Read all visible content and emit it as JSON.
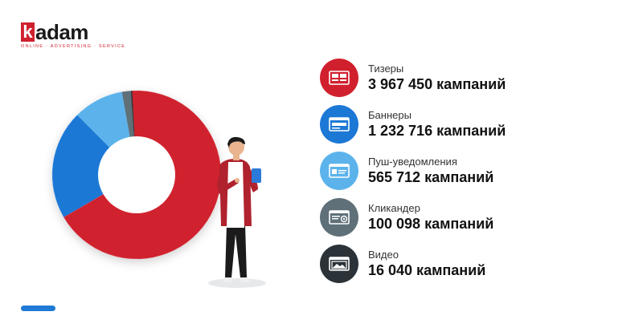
{
  "brand": {
    "logo_k": "k",
    "logo_rest": "adam",
    "tagline": "ONLINE · ADVERTISING · SERVICE",
    "accent": "#d0202e"
  },
  "chart_data": {
    "type": "pie",
    "categories": [
      "Тизеры",
      "Баннеры",
      "Пуш-уведомления",
      "Кликандер",
      "Видео"
    ],
    "values": [
      3967450,
      1232716,
      565712,
      100098,
      16040
    ],
    "unit": "кампаний",
    "colors": [
      "#d0202e",
      "#1c78d5",
      "#5cb3ec",
      "#5f7079",
      "#2c3338"
    ]
  },
  "legend": [
    {
      "label": "Тизеры",
      "count": "3 967 450 кампаний",
      "color": "#d0202e",
      "icon": "teaser-icon"
    },
    {
      "label": "Баннеры",
      "count": "1 232 716 кампаний",
      "color": "#1c78d5",
      "icon": "banner-icon"
    },
    {
      "label": "Пуш-уведомления",
      "count": "565 712 кампаний",
      "color": "#5cb3ec",
      "icon": "push-notification-icon"
    },
    {
      "label": "Кликандер",
      "count": "100 098 кампаний",
      "color": "#5f7079",
      "icon": "clickunder-icon"
    },
    {
      "label": "Видео",
      "count": "16 040 кампаний",
      "color": "#2c3338",
      "icon": "video-icon"
    }
  ]
}
